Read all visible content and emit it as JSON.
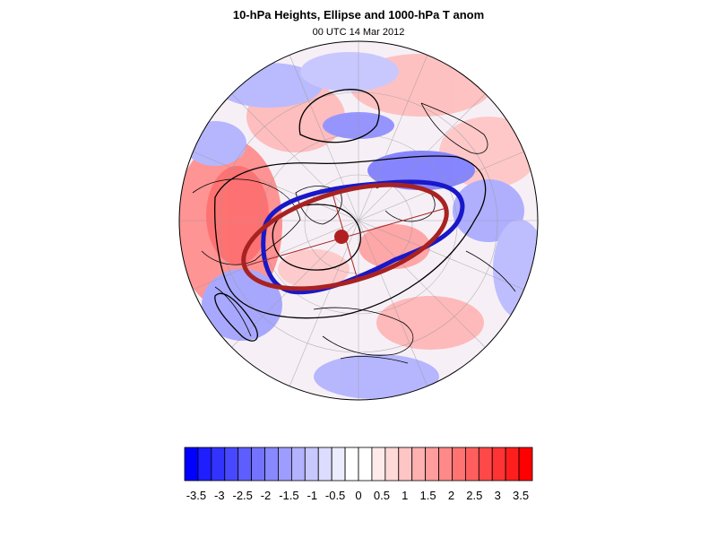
{
  "header": {
    "title": "10-hPa Heights, Ellipse and 1000-hPa T anom",
    "subtitle": "00 UTC 14 Mar 2012"
  },
  "colorbar": {
    "labels": [
      "-3.5",
      "-3",
      "-2.5",
      "-2",
      "-1.5",
      "-1",
      "-0.5",
      "0",
      "0.5",
      "1",
      "1.5",
      "2",
      "2.5",
      "3",
      "3.5"
    ],
    "colors": [
      "#0000ff",
      "#1e1eff",
      "#3333ff",
      "#4848ff",
      "#5e5eff",
      "#7373ff",
      "#8888ff",
      "#9d9dff",
      "#b2b2ff",
      "#c8c8ff",
      "#dcdcff",
      "#ececff",
      "#ffffff",
      "#ffffff",
      "#ffeaea",
      "#ffd8d8",
      "#ffc4c4",
      "#ffb0b0",
      "#ff9c9c",
      "#ff8888",
      "#ff7373",
      "#ff5e5e",
      "#ff4848",
      "#ff3333",
      "#ff1e1e",
      "#ff0000"
    ]
  },
  "legend_colors": {
    "ellipse_blue": "#1818c8",
    "ellipse_red": "#a82222",
    "height_contour": "#000000"
  }
}
